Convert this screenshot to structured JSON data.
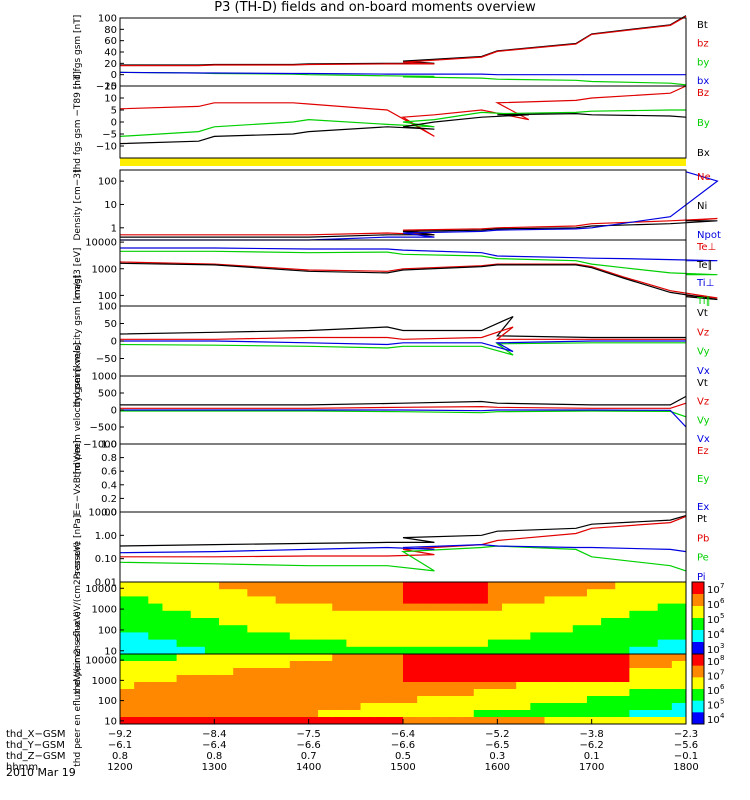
{
  "page": {
    "title": "P3 (TH-D) fields and on-board moments overview",
    "date_label": "2010 Mar 19"
  },
  "colors": {
    "black": "#000000",
    "red": "#e00000",
    "green": "#00d000",
    "blue": "#0000e0",
    "yellow_bar": "#ffee00"
  },
  "chart_data": [
    {
      "type": "line",
      "panel": "fgs_gsm",
      "ylabel": "thd fgs gsm [nT]",
      "ylim": [
        -20,
        100
      ],
      "y_ticks": [
        "100",
        "80",
        "60",
        "40",
        "20",
        "0",
        "−20"
      ],
      "x": [
        1200,
        1250,
        1300,
        1350,
        1400,
        1450,
        1480,
        1500,
        1550,
        1600,
        1650,
        1700,
        1750,
        1800
      ],
      "series": [
        {
          "name": "Bt",
          "color": "#000000",
          "values": [
            17,
            17,
            18,
            18,
            19,
            20,
            20,
            24,
            32,
            42,
            55,
            72,
            88,
            104
          ]
        },
        {
          "name": "bz",
          "color": "#e00000",
          "values": [
            16,
            16,
            17,
            17,
            18,
            19,
            19,
            22,
            31,
            41,
            54,
            71,
            87,
            103
          ]
        },
        {
          "name": "by",
          "color": "#00d000",
          "values": [
            4,
            3,
            2,
            1,
            0,
            -2,
            -3,
            -4,
            -6,
            -8,
            -10,
            -12,
            -15,
            -18
          ]
        },
        {
          "name": "bx",
          "color": "#0000e0",
          "values": [
            4,
            3,
            3,
            2,
            2,
            1,
            1,
            1,
            1,
            0,
            0,
            0,
            0,
            0
          ]
        }
      ],
      "legend": [
        "Bt",
        "bz",
        "by",
        "bx"
      ]
    },
    {
      "type": "line",
      "panel": "fgs_gsm_minus_t89",
      "ylabel": "thd fgs gsm −T89 [nT]",
      "ylim": [
        -15,
        15
      ],
      "y_ticks": [
        "15",
        "10",
        "5",
        "0",
        "−5",
        "−10"
      ],
      "x": [
        1200,
        1250,
        1300,
        1350,
        1400,
        1450,
        1480,
        1500,
        1520,
        1550,
        1580,
        1600,
        1650,
        1700,
        1750,
        1800
      ],
      "series": [
        {
          "name": "Bz",
          "color": "#e00000",
          "values": [
            5.5,
            6.5,
            8,
            8,
            7.5,
            5,
            -6,
            2,
            3,
            5,
            1,
            8,
            9,
            10,
            12,
            15
          ]
        },
        {
          "name": "By",
          "color": "#00d000",
          "values": [
            -6,
            -4,
            -2,
            0,
            1,
            -1,
            -2,
            0,
            1,
            4,
            3,
            3.5,
            4,
            4.5,
            5,
            5
          ]
        },
        {
          "name": "Bx",
          "color": "#000000",
          "values": [
            -9,
            -8,
            -6,
            -5,
            -4,
            -2,
            -3,
            -2,
            0,
            2,
            3,
            3,
            3.5,
            3,
            2.5,
            2
          ]
        }
      ],
      "legend": [
        "Bz",
        "By",
        "Bx"
      ]
    },
    {
      "type": "line",
      "panel": "density",
      "ylabel": "Density [cm−3]",
      "scale": "log",
      "ylim": [
        0.3,
        300
      ],
      "y_ticks": [
        "100",
        "10",
        "1"
      ],
      "x": [
        1200,
        1300,
        1400,
        1450,
        1480,
        1500,
        1550,
        1600,
        1650,
        1700,
        1750,
        1780,
        1800
      ],
      "series": [
        {
          "name": "Ne",
          "color": "#e00000",
          "values": [
            0.5,
            0.5,
            0.5,
            0.6,
            0.5,
            0.8,
            0.9,
            1,
            1.2,
            1.5,
            2,
            2.5,
            2
          ]
        },
        {
          "name": "Ni",
          "color": "#000000",
          "values": [
            0.4,
            0.4,
            0.4,
            0.5,
            0.5,
            0.7,
            0.8,
            0.9,
            1,
            1.2,
            1.5,
            2,
            2
          ]
        },
        {
          "name": "Npot",
          "color": "#0000e0",
          "values": [
            0.3,
            0.3,
            0.3,
            0.4,
            0.4,
            0.6,
            0.7,
            0.8,
            0.9,
            1,
            3,
            100,
            250
          ]
        }
      ],
      "legend": [
        "Ne",
        "Ni",
        "Npot"
      ]
    },
    {
      "type": "line",
      "panel": "temperature",
      "ylabel": "magt3 [eV]",
      "scale": "log",
      "ylim": [
        40,
        12000
      ],
      "y_ticks": [
        "10000",
        "1000",
        "100"
      ],
      "x": [
        1200,
        1300,
        1400,
        1450,
        1500,
        1550,
        1600,
        1650,
        1700,
        1720,
        1750,
        1780,
        1800
      ],
      "series": [
        {
          "name": "Te⊥",
          "color": "#e00000",
          "values": [
            1800,
            1500,
            900,
            800,
            1000,
            1300,
            1500,
            1500,
            1200,
            500,
            150,
            80,
            100
          ]
        },
        {
          "name": "Te∥",
          "color": "#000000",
          "values": [
            1600,
            1400,
            800,
            700,
            900,
            1200,
            1400,
            1400,
            1100,
            450,
            130,
            70,
            90
          ]
        },
        {
          "name": "Ti⊥",
          "color": "#0000e0",
          "values": [
            6000,
            6000,
            5500,
            5500,
            5000,
            4000,
            3000,
            2600,
            2500,
            2400,
            2200,
            2000,
            2000
          ]
        },
        {
          "name": "Ti∥",
          "color": "#00d000",
          "values": [
            4500,
            4500,
            4000,
            4200,
            3500,
            3000,
            2400,
            2000,
            1500,
            1100,
            700,
            600,
            600
          ]
        }
      ],
      "legend": [
        "Te⊥",
        "Te∥",
        "Ti⊥",
        "Ti∥"
      ]
    },
    {
      "type": "line",
      "panel": "peim_velocity",
      "ylabel": "thd peim velocity gsm [km/s]",
      "ylim": [
        -100,
        100
      ],
      "y_ticks": [
        "100",
        "50",
        "0",
        "−50"
      ],
      "x": [
        1200,
        1300,
        1400,
        1450,
        1500,
        1550,
        1570,
        1600,
        1700,
        1800
      ],
      "series": [
        {
          "name": "Vt",
          "color": "#000000",
          "values": [
            20,
            25,
            30,
            40,
            30,
            30,
            70,
            15,
            10,
            10
          ]
        },
        {
          "name": "Vz",
          "color": "#e00000",
          "values": [
            5,
            5,
            10,
            10,
            5,
            10,
            40,
            5,
            5,
            5
          ]
        },
        {
          "name": "Vy",
          "color": "#00d000",
          "values": [
            -10,
            -12,
            -15,
            -20,
            -15,
            -15,
            -40,
            -8,
            -5,
            -5
          ]
        },
        {
          "name": "Vx",
          "color": "#0000e0",
          "values": [
            0,
            0,
            -5,
            -10,
            -5,
            -5,
            -30,
            -5,
            0,
            0
          ]
        }
      ],
      "legend": [
        "Vt",
        "Vz",
        "Vy",
        "Vx"
      ]
    },
    {
      "type": "line",
      "panel": "peem_velocity",
      "ylabel": "thd peem velocity gsm [km/s]",
      "ylim": [
        -1000,
        1000
      ],
      "y_ticks": [
        "1000",
        "500",
        "0",
        "−500",
        "−1000"
      ],
      "x": [
        1200,
        1300,
        1400,
        1500,
        1550,
        1600,
        1700,
        1750,
        1800
      ],
      "series": [
        {
          "name": "Vt",
          "color": "#000000",
          "values": [
            150,
            150,
            150,
            200,
            250,
            200,
            150,
            150,
            400
          ]
        },
        {
          "name": "Vz",
          "color": "#e00000",
          "values": [
            50,
            50,
            50,
            80,
            100,
            80,
            50,
            50,
            200
          ]
        },
        {
          "name": "Vy",
          "color": "#00d000",
          "values": [
            -30,
            -30,
            -30,
            -50,
            -80,
            -50,
            -30,
            -40,
            -200
          ]
        },
        {
          "name": "Vx",
          "color": "#0000e0",
          "values": [
            0,
            0,
            0,
            0,
            -20,
            0,
            0,
            -10,
            -500
          ]
        }
      ],
      "legend": [
        "Vt",
        "Vz",
        "Vy",
        "Vx"
      ]
    },
    {
      "type": "line",
      "panel": "e_field",
      "ylabel": "E=−VxB [mV/m]",
      "ylim": [
        0,
        1
      ],
      "y_ticks": [
        "1.0",
        "0.8",
        "0.6",
        "0.4",
        "0.2",
        "0.0"
      ],
      "x": [],
      "series": [],
      "legend": [
        "Ez",
        "Ey",
        "Ex"
      ],
      "legend_colors": [
        "#e00000",
        "#00d000",
        "#0000e0"
      ]
    },
    {
      "type": "line",
      "panel": "pressure",
      "ylabel": "Pressure [nPa]",
      "scale": "log",
      "ylim": [
        0.01,
        10
      ],
      "y_ticks": [
        "10.00",
        "1.00",
        "0.10",
        "0.01"
      ],
      "x": [
        1200,
        1300,
        1400,
        1450,
        1480,
        1500,
        1550,
        1600,
        1650,
        1700,
        1750,
        1800
      ],
      "series": [
        {
          "name": "Pt",
          "color": "#000000",
          "values": [
            0.35,
            0.4,
            0.45,
            0.5,
            0.5,
            0.8,
            1.0,
            1.5,
            2.0,
            3.0,
            4.5,
            7.0
          ]
        },
        {
          "name": "Pb",
          "color": "#e00000",
          "values": [
            0.12,
            0.12,
            0.13,
            0.13,
            0.15,
            0.25,
            0.4,
            0.6,
            1.2,
            2.0,
            3.5,
            6.5
          ]
        },
        {
          "name": "Pe",
          "color": "#00d000",
          "values": [
            0.07,
            0.06,
            0.05,
            0.05,
            0.03,
            0.2,
            0.3,
            0.35,
            0.25,
            0.12,
            0.05,
            0.03
          ]
        },
        {
          "name": "Pi",
          "color": "#0000e0",
          "values": [
            0.18,
            0.2,
            0.25,
            0.3,
            0.25,
            0.3,
            0.4,
            0.35,
            0.3,
            0.3,
            0.25,
            0.2
          ]
        }
      ],
      "legend": [
        "Pt",
        "Pb",
        "Pe",
        "Pi"
      ]
    },
    {
      "type": "heatmap",
      "panel": "peir_efflux",
      "ylabel": "thd peir en eflux eV/(cm2-s-sr-eV)",
      "scale": "log",
      "ylim": [
        7,
        20000
      ],
      "y_ticks": [
        "10000",
        "1000",
        "100",
        "10"
      ],
      "colorbar_ticks": [
        "10",
        "10",
        "10",
        "10",
        "10"
      ],
      "colorbar_exponents": [
        "7",
        "6",
        "5",
        "4",
        "3"
      ]
    },
    {
      "type": "heatmap",
      "panel": "peer_efflux",
      "ylabel": "thd peer en eflux eV/(cm2-s-sr-eV)",
      "scale": "log",
      "ylim": [
        7,
        20000
      ],
      "y_ticks": [
        "10000",
        "1000",
        "100",
        "10"
      ],
      "colorbar_ticks": [
        "10",
        "10",
        "10",
        "10",
        "10"
      ],
      "colorbar_exponents": [
        "8",
        "7",
        "6",
        "5",
        "4"
      ]
    }
  ],
  "time_axis": {
    "row_labels": [
      "thd_X−GSM",
      "thd_Y−GSM",
      "thd_Z−GSM",
      "hhmm"
    ],
    "columns": [
      {
        "x_gsm": "−9.2",
        "y_gsm": "−6.1",
        "z_gsm": "0.8",
        "hhmm": "1200"
      },
      {
        "x_gsm": "−8.4",
        "y_gsm": "−6.4",
        "z_gsm": "0.8",
        "hhmm": "1300"
      },
      {
        "x_gsm": "−7.5",
        "y_gsm": "−6.6",
        "z_gsm": "0.7",
        "hhmm": "1400"
      },
      {
        "x_gsm": "−6.4",
        "y_gsm": "−6.6",
        "z_gsm": "0.5",
        "hhmm": "1500"
      },
      {
        "x_gsm": "−5.2",
        "y_gsm": "−6.5",
        "z_gsm": "0.3",
        "hhmm": "1600"
      },
      {
        "x_gsm": "−3.8",
        "y_gsm": "−6.2",
        "z_gsm": "0.1",
        "hhmm": "1700"
      },
      {
        "x_gsm": "−2.3",
        "y_gsm": "−5.6",
        "z_gsm": "−0.1",
        "hhmm": "1800"
      }
    ]
  }
}
